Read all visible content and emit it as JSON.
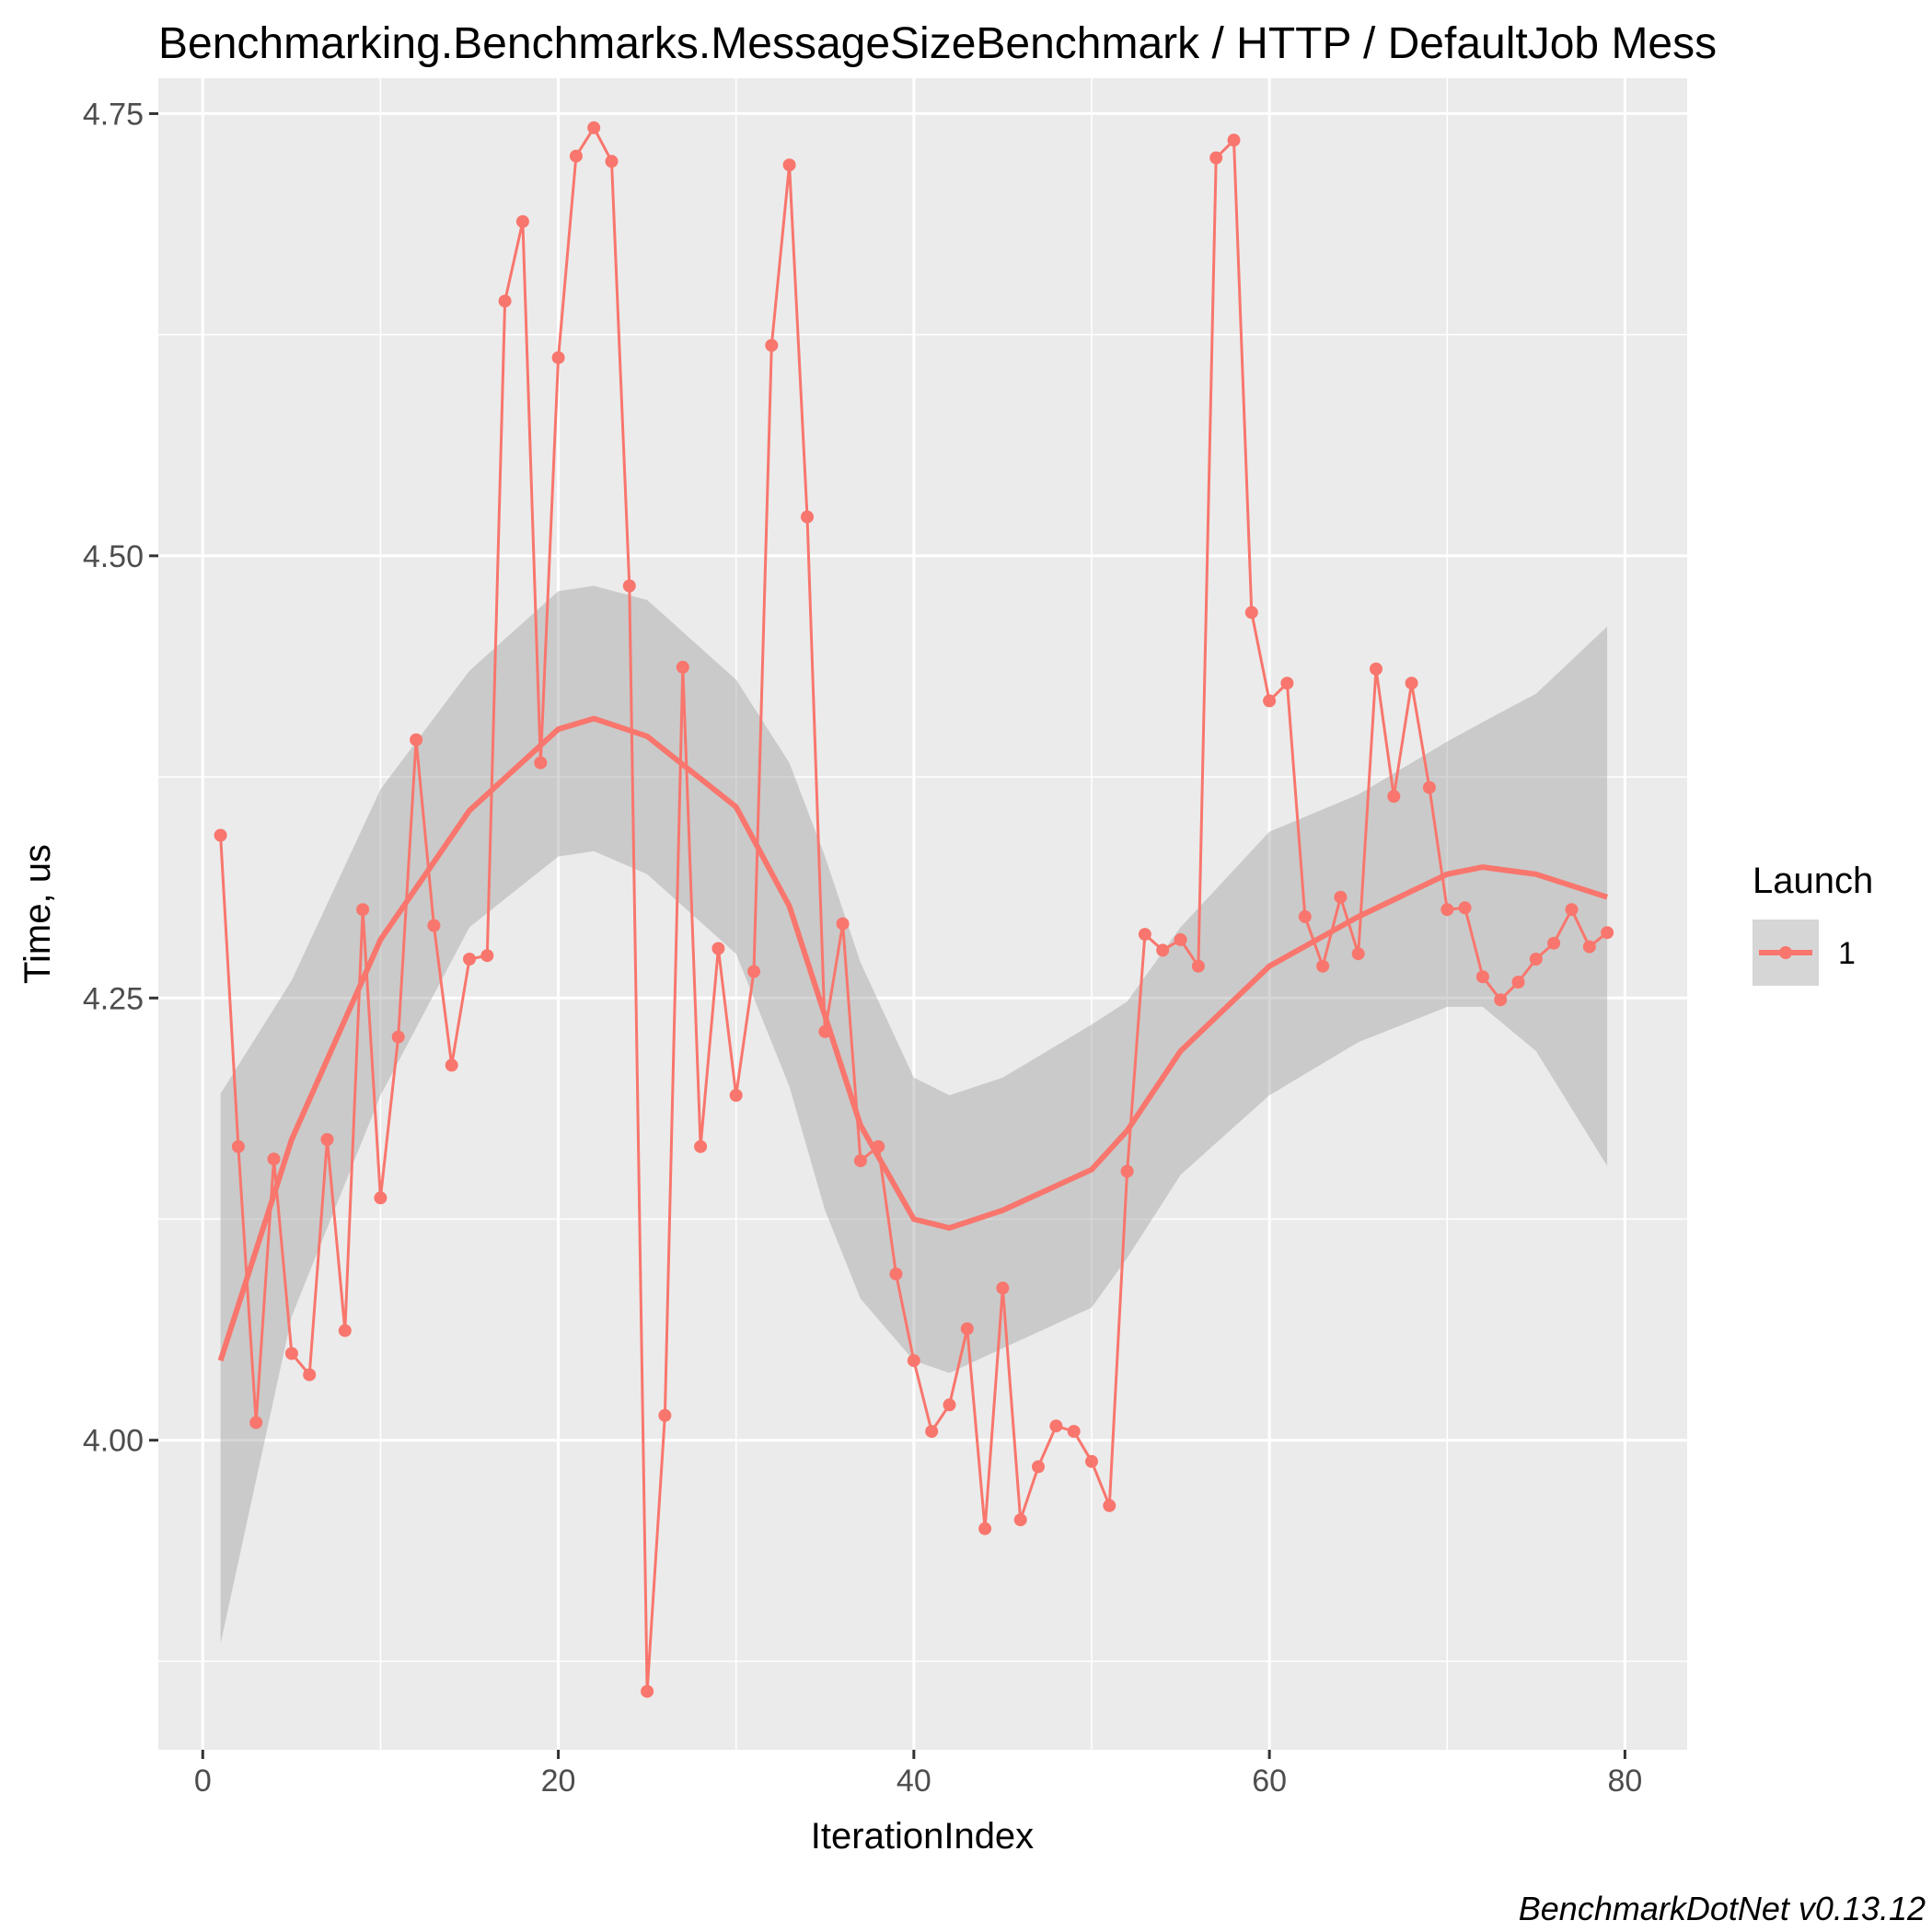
{
  "chart_data": {
    "type": "line",
    "title": "Benchmarking.Benchmarks.MessageSizeBenchmark / HTTP / DefaultJob Mess",
    "xlabel": "IterationIndex",
    "ylabel": "Time, us",
    "caption": "BenchmarkDotNet v0.13.12",
    "xlim": [
      -2.5,
      83.5
    ],
    "ylim": [
      3.825,
      4.77
    ],
    "xticks": [
      0,
      20,
      40,
      60,
      80
    ],
    "xtick_labels": [
      "0",
      "20",
      "40",
      "60",
      "80"
    ],
    "yticks": [
      4.0,
      4.25,
      4.5,
      4.75
    ],
    "ytick_labels": [
      "4.00",
      "4.25",
      "4.50",
      "4.75"
    ],
    "grid": true,
    "legend": {
      "title": "Launch",
      "position": "right"
    },
    "series": [
      {
        "name": "1",
        "color": "#f8766d",
        "x": [
          1,
          2,
          3,
          4,
          5,
          6,
          7,
          8,
          9,
          10,
          11,
          12,
          13,
          14,
          15,
          16,
          17,
          18,
          19,
          20,
          21,
          22,
          23,
          24,
          25,
          26,
          27,
          28,
          29,
          30,
          31,
          32,
          33,
          34,
          35,
          36,
          37,
          38,
          39,
          40,
          41,
          42,
          43,
          44,
          45,
          46,
          47,
          48,
          49,
          50,
          51,
          52,
          53,
          54,
          55,
          56,
          57,
          58,
          59,
          60,
          61,
          62,
          63,
          64,
          65,
          66,
          67,
          68,
          69,
          70,
          71,
          72,
          73,
          74,
          75,
          76,
          77,
          78,
          79
        ],
        "y": [
          4.342,
          4.166,
          4.01,
          4.159,
          4.049,
          4.037,
          4.17,
          4.062,
          4.3,
          4.137,
          4.228,
          4.396,
          4.291,
          4.212,
          4.272,
          4.274,
          4.644,
          4.689,
          4.383,
          4.612,
          4.726,
          4.742,
          4.723,
          4.483,
          3.858,
          4.014,
          4.437,
          4.166,
          4.278,
          4.195,
          4.265,
          4.619,
          4.721,
          4.522,
          4.231,
          4.292,
          4.158,
          4.166,
          4.094,
          4.045,
          4.005,
          4.02,
          4.063,
          3.95,
          4.086,
          3.955,
          3.985,
          4.008,
          4.005,
          3.988,
          3.963,
          4.152,
          4.286,
          4.277,
          4.283,
          4.268,
          4.725,
          4.735,
          4.468,
          4.418,
          4.428,
          4.296,
          4.268,
          4.307,
          4.275,
          4.436,
          4.364,
          4.428,
          4.369,
          4.3,
          4.301,
          4.262,
          4.249,
          4.259,
          4.272,
          4.281,
          4.3,
          4.279,
          4.287
        ]
      }
    ],
    "smooth": {
      "x": [
        1,
        5,
        10,
        15,
        20,
        22,
        25,
        30,
        33,
        35,
        37,
        40,
        42,
        45,
        50,
        52,
        55,
        60,
        65,
        70,
        72,
        75,
        79
      ],
      "y": [
        4.045,
        4.17,
        4.283,
        4.356,
        4.402,
        4.408,
        4.398,
        4.358,
        4.302,
        4.24,
        4.178,
        4.125,
        4.12,
        4.13,
        4.153,
        4.175,
        4.22,
        4.268,
        4.296,
        4.32,
        4.324,
        4.32,
        4.307
      ],
      "ymin": [
        3.885,
        4.07,
        4.195,
        4.29,
        4.33,
        4.333,
        4.32,
        4.275,
        4.2,
        4.13,
        4.08,
        4.045,
        4.038,
        4.052,
        4.075,
        4.103,
        4.15,
        4.195,
        4.225,
        4.245,
        4.245,
        4.22,
        4.155
      ],
      "ymax": [
        4.196,
        4.26,
        4.368,
        4.435,
        4.48,
        4.483,
        4.475,
        4.43,
        4.383,
        4.33,
        4.27,
        4.205,
        4.195,
        4.205,
        4.235,
        4.248,
        4.29,
        4.344,
        4.365,
        4.395,
        4.406,
        4.422,
        4.46
      ]
    }
  }
}
